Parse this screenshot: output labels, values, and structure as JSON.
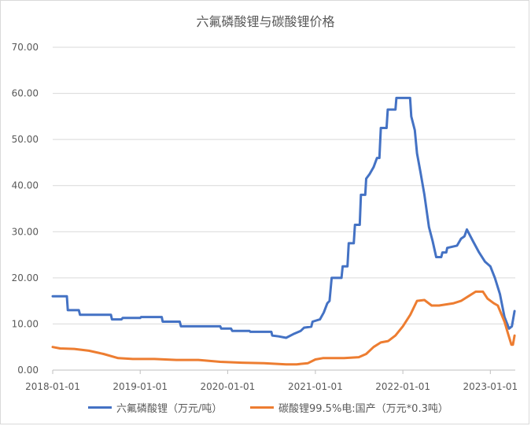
{
  "chart_data": {
    "type": "line",
    "title": "六氟磷酸锂与碳酸锂价格",
    "xlabel": "",
    "ylabel": "",
    "ylim": [
      0,
      70
    ],
    "y_ticks": [
      "0.00",
      "10.00",
      "20.00",
      "30.00",
      "40.00",
      "50.00",
      "60.00",
      "70.00"
    ],
    "x_range": [
      "2018-01-01",
      "2023-04-15"
    ],
    "x_ticks": [
      "2018-01-01",
      "2019-01-01",
      "2020-01-01",
      "2021-01-01",
      "2022-01-01",
      "2023-01-01"
    ],
    "grid": "horizontal",
    "legend_position": "bottom",
    "series": [
      {
        "name": "六氟磷酸锂（万元/吨）",
        "color": "#4472c4",
        "points": [
          [
            "2018-01-01",
            16.0
          ],
          [
            "2018-03-01",
            16.0
          ],
          [
            "2018-03-05",
            13.0
          ],
          [
            "2018-04-20",
            13.0
          ],
          [
            "2018-04-25",
            12.0
          ],
          [
            "2018-09-01",
            12.0
          ],
          [
            "2018-09-05",
            11.0
          ],
          [
            "2018-10-15",
            11.0
          ],
          [
            "2018-10-20",
            11.3
          ],
          [
            "2019-01-01",
            11.3
          ],
          [
            "2019-01-05",
            11.5
          ],
          [
            "2019-04-01",
            11.5
          ],
          [
            "2019-04-05",
            10.5
          ],
          [
            "2019-06-15",
            10.5
          ],
          [
            "2019-06-20",
            9.5
          ],
          [
            "2019-12-01",
            9.5
          ],
          [
            "2019-12-05",
            9.0
          ],
          [
            "2020-01-15",
            9.0
          ],
          [
            "2020-01-20",
            8.5
          ],
          [
            "2020-04-01",
            8.5
          ],
          [
            "2020-04-05",
            8.3
          ],
          [
            "2020-07-01",
            8.3
          ],
          [
            "2020-07-05",
            7.5
          ],
          [
            "2020-08-01",
            7.3
          ],
          [
            "2020-09-01",
            7.0
          ],
          [
            "2020-10-01",
            7.8
          ],
          [
            "2020-11-01",
            8.5
          ],
          [
            "2020-11-15",
            9.2
          ],
          [
            "2020-12-15",
            9.4
          ],
          [
            "2020-12-20",
            10.5
          ],
          [
            "2021-01-20",
            11.0
          ],
          [
            "2021-02-05",
            12.5
          ],
          [
            "2021-02-20",
            14.5
          ],
          [
            "2021-03-01",
            15.0
          ],
          [
            "2021-03-10",
            20.0
          ],
          [
            "2021-04-20",
            20.0
          ],
          [
            "2021-04-25",
            22.5
          ],
          [
            "2021-05-15",
            22.5
          ],
          [
            "2021-05-20",
            27.5
          ],
          [
            "2021-06-10",
            27.5
          ],
          [
            "2021-06-15",
            31.5
          ],
          [
            "2021-07-05",
            31.5
          ],
          [
            "2021-07-10",
            38.0
          ],
          [
            "2021-07-28",
            38.0
          ],
          [
            "2021-08-01",
            41.5
          ],
          [
            "2021-08-15",
            42.5
          ],
          [
            "2021-09-01",
            44.0
          ],
          [
            "2021-09-15",
            46.0
          ],
          [
            "2021-09-25",
            46.0
          ],
          [
            "2021-10-01",
            52.5
          ],
          [
            "2021-10-25",
            52.5
          ],
          [
            "2021-10-30",
            56.5
          ],
          [
            "2021-12-01",
            56.5
          ],
          [
            "2021-12-05",
            59.0
          ],
          [
            "2022-01-31",
            59.0
          ],
          [
            "2022-02-05",
            55.0
          ],
          [
            "2022-02-20",
            52.0
          ],
          [
            "2022-03-01",
            47.0
          ],
          [
            "2022-03-15",
            43.0
          ],
          [
            "2022-04-01",
            38.0
          ],
          [
            "2022-04-20",
            31.0
          ],
          [
            "2022-05-05",
            28.0
          ],
          [
            "2022-05-20",
            24.5
          ],
          [
            "2022-06-10",
            24.5
          ],
          [
            "2022-06-15",
            25.5
          ],
          [
            "2022-07-01",
            25.5
          ],
          [
            "2022-07-05",
            26.5
          ],
          [
            "2022-08-15",
            27.0
          ],
          [
            "2022-09-01",
            28.5
          ],
          [
            "2022-09-15",
            29.0
          ],
          [
            "2022-09-25",
            30.5
          ],
          [
            "2022-10-05",
            29.5
          ],
          [
            "2022-10-20",
            28.0
          ],
          [
            "2022-11-15",
            25.5
          ],
          [
            "2022-12-10",
            23.5
          ],
          [
            "2023-01-01",
            22.5
          ],
          [
            "2023-01-20",
            20.0
          ],
          [
            "2023-02-10",
            16.5
          ],
          [
            "2023-03-01",
            11.5
          ],
          [
            "2023-03-20",
            9.0
          ],
          [
            "2023-04-01",
            9.5
          ],
          [
            "2023-04-12",
            12.8
          ]
        ]
      },
      {
        "name": "碳酸锂99.5%电:国产（万元*0.3吨）",
        "color": "#ed7d31",
        "points": [
          [
            "2018-01-01",
            5.0
          ],
          [
            "2018-02-01",
            4.7
          ],
          [
            "2018-04-01",
            4.6
          ],
          [
            "2018-06-01",
            4.2
          ],
          [
            "2018-08-01",
            3.5
          ],
          [
            "2018-10-01",
            2.6
          ],
          [
            "2018-12-01",
            2.4
          ],
          [
            "2019-03-01",
            2.4
          ],
          [
            "2019-06-01",
            2.2
          ],
          [
            "2019-09-01",
            2.2
          ],
          [
            "2019-12-01",
            1.8
          ],
          [
            "2020-03-01",
            1.6
          ],
          [
            "2020-06-01",
            1.5
          ],
          [
            "2020-09-01",
            1.25
          ],
          [
            "2020-10-15",
            1.25
          ],
          [
            "2020-12-01",
            1.5
          ],
          [
            "2021-01-01",
            2.3
          ],
          [
            "2021-02-01",
            2.6
          ],
          [
            "2021-05-01",
            2.6
          ],
          [
            "2021-07-01",
            2.8
          ],
          [
            "2021-08-01",
            3.5
          ],
          [
            "2021-09-01",
            5.0
          ],
          [
            "2021-10-01",
            6.0
          ],
          [
            "2021-11-01",
            6.3
          ],
          [
            "2021-12-01",
            7.5
          ],
          [
            "2022-01-01",
            9.5
          ],
          [
            "2022-02-01",
            12.0
          ],
          [
            "2022-03-01",
            15.0
          ],
          [
            "2022-04-01",
            15.2
          ],
          [
            "2022-05-01",
            14.0
          ],
          [
            "2022-06-01",
            14.0
          ],
          [
            "2022-08-01",
            14.5
          ],
          [
            "2022-09-01",
            15.0
          ],
          [
            "2022-10-01",
            16.0
          ],
          [
            "2022-11-01",
            17.0
          ],
          [
            "2022-12-01",
            17.0
          ],
          [
            "2022-12-20",
            15.5
          ],
          [
            "2023-01-15",
            14.5
          ],
          [
            "2023-02-01",
            14.0
          ],
          [
            "2023-03-01",
            10.5
          ],
          [
            "2023-03-15",
            8.0
          ],
          [
            "2023-03-30",
            5.5
          ],
          [
            "2023-04-05",
            5.5
          ],
          [
            "2023-04-12",
            7.5
          ]
        ]
      }
    ]
  }
}
